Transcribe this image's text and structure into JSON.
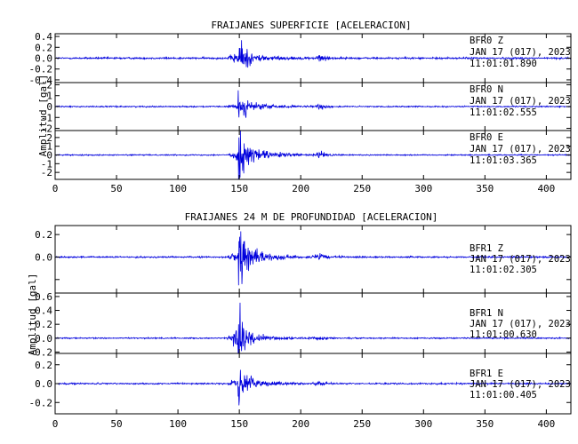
{
  "charts": [
    {
      "title": "FRAIJANES SUPERFICIE [ACELERACION]",
      "ylabel": "Amplitud [gal]",
      "xlim": [
        0,
        420
      ],
      "x_ticks": [
        0,
        50,
        100,
        150,
        200,
        250,
        300,
        350,
        400
      ],
      "traces": [
        {
          "station": "BFR0",
          "component": "Z",
          "date": "JAN 17 (017), 2023",
          "time": "11:01:01.890",
          "ylim": [
            -0.45,
            0.45
          ],
          "y_ticks": [
            -0.4,
            -0.2,
            0.0,
            0.2,
            0.4
          ],
          "y_tick_labels": [
            "-0.4",
            "-0.2",
            "0.0",
            "0.2",
            "0.4"
          ],
          "noise": 0.015,
          "main_peak": 0.4,
          "secondary_peak": 0.06,
          "coda": 0.3
        },
        {
          "station": "BFR0",
          "component": "N",
          "date": "JAN 17 (017), 2023",
          "time": "11:01:02.555",
          "ylim": [
            -2.2,
            2.2
          ],
          "y_ticks": [
            -2,
            -1,
            0,
            1,
            2
          ],
          "y_tick_labels": [
            "-2",
            "-1",
            "0",
            "1",
            "2"
          ],
          "noise": 0.05,
          "main_peak": 1.2,
          "secondary_peak": 0.25,
          "coda": 0.45
        },
        {
          "station": "BFR0",
          "component": "E",
          "date": "JAN 17 (017), 2023",
          "time": "11:01:03.365",
          "ylim": [
            -2.8,
            2.8
          ],
          "y_ticks": [
            -2,
            -1,
            0,
            1,
            2
          ],
          "y_tick_labels": [
            "-2",
            "-1",
            "0",
            "1",
            "2"
          ],
          "noise": 0.06,
          "main_peak": 2.6,
          "secondary_peak": 0.4,
          "coda": 0.5
        }
      ]
    },
    {
      "title": "FRAIJANES 24 M DE PROFUNDIDAD [ACELERACION]",
      "ylabel": "Amplitud [gal]",
      "xlim": [
        0,
        420
      ],
      "x_ticks": [
        0,
        50,
        100,
        150,
        200,
        250,
        300,
        350,
        400
      ],
      "traces": [
        {
          "station": "BFR1",
          "component": "Z",
          "date": "JAN 17 (017), 2023",
          "time": "11:01:02.305",
          "ylim": [
            -0.32,
            0.28
          ],
          "y_ticks": [
            -0.2,
            0.0,
            0.2
          ],
          "y_tick_labels": [
            "",
            "0.0",
            "0.2"
          ],
          "noise": 0.006,
          "main_peak": 0.25,
          "secondary_peak": 0.03,
          "coda": 0.4
        },
        {
          "station": "BFR1",
          "component": "N",
          "date": "JAN 17 (017), 2023",
          "time": "11:01:00.630",
          "ylim": [
            -0.22,
            0.65
          ],
          "y_ticks": [
            -0.2,
            0.0,
            0.2,
            0.4,
            0.6
          ],
          "y_tick_labels": [
            "-0.2",
            "0.0",
            "0.2",
            "0.4",
            "0.6"
          ],
          "noise": 0.008,
          "main_peak": 0.6,
          "secondary_peak": 0.025,
          "coda": 0.15
        },
        {
          "station": "BFR1",
          "component": "E",
          "date": "JAN 17 (017), 2023",
          "time": "11:01:00.405",
          "ylim": [
            -0.32,
            0.32
          ],
          "y_ticks": [
            -0.2,
            0.0,
            0.2
          ],
          "y_tick_labels": [
            "-0.2",
            "0.0",
            "0.2"
          ],
          "noise": 0.007,
          "main_peak": 0.22,
          "secondary_peak": 0.025,
          "coda": 0.35
        }
      ]
    }
  ],
  "chart_data": [
    {
      "type": "line",
      "title": "FRAIJANES SUPERFICIE [ACELERACION]",
      "xlabel": "",
      "ylabel": "Amplitud [gal]",
      "xlim": [
        0,
        420
      ],
      "grid": false,
      "series": [
        {
          "name": "BFR0 Z",
          "ylim": [
            -0.45,
            0.45
          ],
          "events": [
            {
              "x": 149,
              "peak": 0.4
            },
            {
              "x": 216,
              "peak": 0.06
            }
          ]
        },
        {
          "name": "BFR0 N",
          "ylim": [
            -2.2,
            2.2
          ],
          "events": [
            {
              "x": 149,
              "peak": 1.2
            },
            {
              "x": 216,
              "peak": 0.25
            }
          ]
        },
        {
          "name": "BFR0 E",
          "ylim": [
            -2.8,
            2.8
          ],
          "events": [
            {
              "x": 149,
              "peak": 2.6
            },
            {
              "x": 216,
              "peak": 0.4
            }
          ]
        }
      ]
    },
    {
      "type": "line",
      "title": "FRAIJANES 24 M DE PROFUNDIDAD [ACELERACION]",
      "xlabel": "",
      "ylabel": "Amplitud [gal]",
      "xlim": [
        0,
        420
      ],
      "grid": false,
      "series": [
        {
          "name": "BFR1 Z",
          "ylim": [
            -0.32,
            0.28
          ],
          "events": [
            {
              "x": 149,
              "peak": 0.25
            },
            {
              "x": 216,
              "peak": 0.03
            }
          ]
        },
        {
          "name": "BFR1 N",
          "ylim": [
            -0.22,
            0.65
          ],
          "events": [
            {
              "x": 149,
              "peak": 0.6
            },
            {
              "x": 216,
              "peak": 0.025
            }
          ]
        },
        {
          "name": "BFR1 E",
          "ylim": [
            -0.32,
            0.32
          ],
          "events": [
            {
              "x": 149,
              "peak": 0.22
            },
            {
              "x": 216,
              "peak": 0.025
            }
          ]
        }
      ]
    }
  ],
  "colors": {
    "trace": "#0000dd",
    "axis": "#000000",
    "background": "#ffffff"
  }
}
